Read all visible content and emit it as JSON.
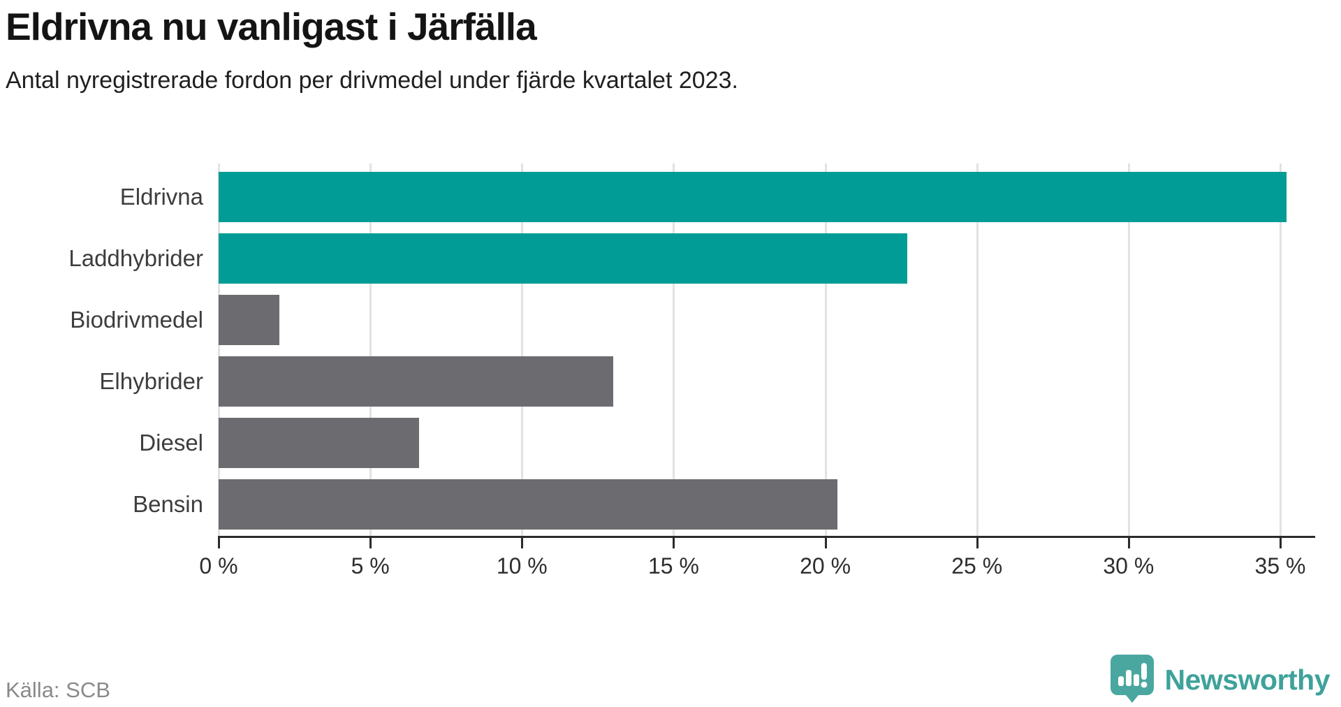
{
  "header": {
    "title": "Eldrivna nu vanligast i Järfälla",
    "subtitle": "Antal nyregistrerade fordon per drivmedel under fjärde kvartalet 2023."
  },
  "chart_data": {
    "type": "bar",
    "orientation": "horizontal",
    "title": "Eldrivna nu vanligast i Järfälla",
    "subtitle": "Antal nyregistrerade fordon per drivmedel under fjärde kvartalet 2023.",
    "categories": [
      "Eldrivna",
      "Laddhybrider",
      "Biodrivmedel",
      "Elhybrider",
      "Diesel",
      "Bensin"
    ],
    "values": [
      35.2,
      22.7,
      2.0,
      13.0,
      6.6,
      20.4
    ],
    "unit": "%",
    "xlabel": "",
    "ylabel": "",
    "xlim": [
      0,
      35
    ],
    "x_ticks": [
      0,
      5,
      10,
      15,
      20,
      25,
      30,
      35
    ],
    "x_tick_labels": [
      "0 %",
      "5 %",
      "10 %",
      "15 %",
      "20 %",
      "25 %",
      "30 %",
      "35 %"
    ],
    "grid": true,
    "legend": "none",
    "bar_colors": [
      "#009c95",
      "#009c95",
      "#6b6b70",
      "#6b6b70",
      "#6b6b70",
      "#6b6b70"
    ],
    "highlight_color": "#009c95",
    "base_color": "#6b6b70"
  },
  "footer": {
    "source": "Källa: SCB",
    "brand_name": "Newsworthy",
    "brand_color": "#3ea29b",
    "logo_icon": "newsworthy-speech-bubble-chart-icon"
  }
}
